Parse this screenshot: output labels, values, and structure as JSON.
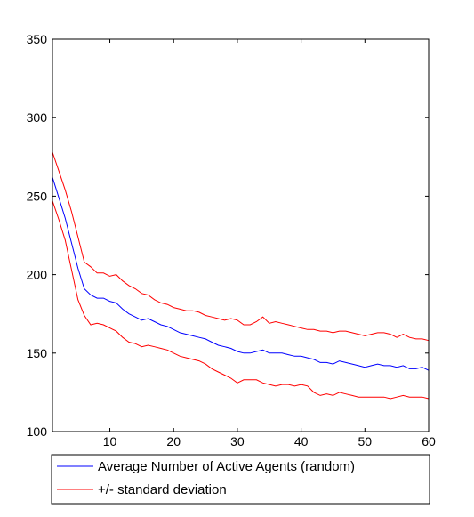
{
  "chart_data": {
    "type": "line",
    "title": "",
    "xlabel": "",
    "ylabel": "",
    "xlim": [
      1,
      60
    ],
    "ylim": [
      100,
      350
    ],
    "x_ticks": [
      10,
      20,
      30,
      40,
      50,
      60
    ],
    "y_ticks": [
      100,
      150,
      200,
      250,
      300,
      350
    ],
    "grid": false,
    "legend_position": "bottom-outside",
    "colors": {
      "mean": "#0000ff",
      "std": "#ff0000",
      "axis": "#000000"
    },
    "x": [
      1,
      2,
      3,
      4,
      5,
      6,
      7,
      8,
      9,
      10,
      11,
      12,
      13,
      14,
      15,
      16,
      17,
      18,
      19,
      20,
      21,
      22,
      23,
      24,
      25,
      26,
      27,
      28,
      29,
      30,
      31,
      32,
      33,
      34,
      35,
      36,
      37,
      38,
      39,
      40,
      41,
      42,
      43,
      44,
      45,
      46,
      47,
      48,
      49,
      50,
      51,
      52,
      53,
      54,
      55,
      56,
      57,
      58,
      59,
      60
    ],
    "series": [
      {
        "name": "Average Number of Active Agents (random)",
        "color": "#0000ff",
        "in_legend": true,
        "values": [
          262,
          249,
          236,
          220,
          204,
          191,
          187,
          185,
          185,
          183,
          182,
          178,
          175,
          173,
          171,
          172,
          170,
          168,
          167,
          165,
          163,
          162,
          161,
          160,
          159,
          157,
          155,
          154,
          153,
          151,
          150,
          150,
          151,
          152,
          150,
          150,
          150,
          149,
          148,
          148,
          147,
          146,
          144,
          144,
          143,
          145,
          144,
          143,
          142,
          141,
          142,
          143,
          142,
          142,
          141,
          142,
          140,
          140,
          141,
          139
        ]
      },
      {
        "name": "+/- standard deviation",
        "color": "#ff0000",
        "in_legend": true,
        "values": [
          278,
          266,
          254,
          240,
          224,
          208,
          205,
          201,
          201,
          199,
          200,
          196,
          193,
          191,
          188,
          187,
          184,
          182,
          181,
          179,
          178,
          177,
          177,
          176,
          174,
          173,
          172,
          171,
          172,
          171,
          168,
          168,
          170,
          173,
          169,
          170,
          169,
          168,
          167,
          166,
          165,
          165,
          164,
          164,
          163,
          164,
          164,
          163,
          162,
          161,
          162,
          163,
          163,
          162,
          160,
          162,
          160,
          159,
          159,
          158
        ]
      },
      {
        "name": "+/- standard deviation (lower)",
        "color": "#ff0000",
        "in_legend": false,
        "values": [
          247,
          235,
          222,
          203,
          184,
          174,
          168,
          169,
          168,
          166,
          164,
          160,
          157,
          156,
          154,
          155,
          154,
          153,
          152,
          150,
          148,
          147,
          146,
          145,
          143,
          140,
          138,
          136,
          134,
          131,
          133,
          133,
          133,
          131,
          130,
          129,
          130,
          130,
          129,
          130,
          129,
          125,
          123,
          124,
          123,
          125,
          124,
          123,
          122,
          122,
          122,
          122,
          122,
          121,
          122,
          123,
          122,
          122,
          122,
          121
        ]
      }
    ],
    "legend": [
      {
        "label": "Average Number of Active Agents (random)",
        "color": "#0000ff"
      },
      {
        "label": "+/- standard deviation",
        "color": "#ff0000"
      }
    ]
  }
}
